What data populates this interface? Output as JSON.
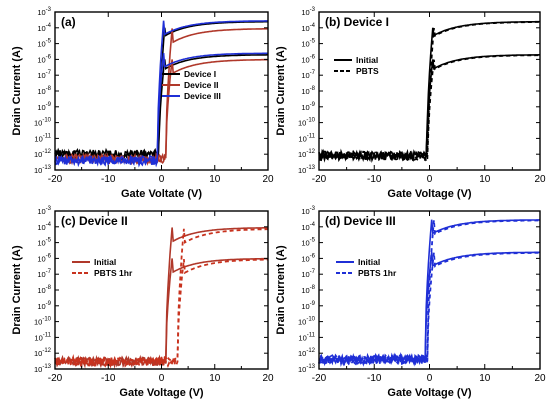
{
  "figure": {
    "y_axis_label": "Drain Current (A)",
    "x_axis_label_a": "Gate Voltate (V)",
    "x_axis_label": "Gate Voltage (V)"
  },
  "chart_data": [
    {
      "type": "line",
      "panel_label": "(a)",
      "title": "",
      "xlabel": "Gate Voltate (V)",
      "ylabel": "Drain Current (A)",
      "xlim": [
        -20,
        20
      ],
      "ylim": [
        1e-13,
        0.001
      ],
      "yscale": "log",
      "x_ticks": [
        -20,
        -10,
        0,
        10,
        20
      ],
      "legend_position": "center-right",
      "grid": false,
      "series": [
        {
          "name": "Device I",
          "color": "#000000",
          "dash": "solid",
          "Vth": -0.5,
          "Ion_high": 0.00025,
          "Ion_low": 2e-06,
          "noise": 1e-12
        },
        {
          "name": "Device II",
          "color": "#b0382a",
          "dash": "solid",
          "Vth": 0.8,
          "Ion_high": 9e-05,
          "Ion_low": 1e-06,
          "noise": 5e-13
        },
        {
          "name": "Device III",
          "color": "#1f2fd6",
          "dash": "solid",
          "Vth": -0.8,
          "Ion_high": 0.00028,
          "Ion_low": 2.5e-06,
          "noise": 4e-13
        }
      ]
    },
    {
      "type": "line",
      "panel_label": "(b) Device I",
      "title": "",
      "xlabel": "Gate Voltage (V)",
      "ylabel": "Drain Current (A)",
      "xlim": [
        -20,
        20
      ],
      "ylim": [
        1e-13,
        0.001
      ],
      "yscale": "log",
      "x_ticks": [
        -20,
        -10,
        0,
        10,
        20
      ],
      "legend_position": "center-left",
      "grid": false,
      "series": [
        {
          "name": "Initial",
          "color": "#000000",
          "dash": "solid",
          "Vth": -0.5,
          "Ion_high": 0.00025,
          "Ion_low": 2e-06,
          "noise": 8e-13
        },
        {
          "name": "PBTS",
          "color": "#000000",
          "dash": "dashed",
          "Vth": -0.3,
          "Ion_high": 0.00024,
          "Ion_low": 1.9e-06,
          "noise": 8e-13
        }
      ]
    },
    {
      "type": "line",
      "panel_label": "(c) Device II",
      "title": "",
      "xlabel": "Gate Voltage (V)",
      "ylabel": "Drain Current (A)",
      "xlim": [
        -20,
        20
      ],
      "ylim": [
        1e-13,
        0.001
      ],
      "yscale": "log",
      "x_ticks": [
        -20,
        -10,
        0,
        10,
        20
      ],
      "legend_position": "center-left",
      "grid": false,
      "series": [
        {
          "name": "Initial",
          "color": "#b0382a",
          "dash": "solid",
          "Vth": 0.8,
          "Ion_high": 9e-05,
          "Ion_low": 1e-06,
          "noise": 3e-13
        },
        {
          "name": "PBTS 1hr",
          "color": "#c8321e",
          "dash": "dashed",
          "Vth": 3.0,
          "Ion_high": 7.5e-05,
          "Ion_low": 9e-07,
          "noise": 3e-13
        }
      ]
    },
    {
      "type": "line",
      "panel_label": "(d) Device III",
      "title": "",
      "xlabel": "Gate Voltage (V)",
      "ylabel": "Drain Current (A)",
      "xlim": [
        -20,
        20
      ],
      "ylim": [
        1e-13,
        0.001
      ],
      "yscale": "log",
      "x_ticks": [
        -20,
        -10,
        0,
        10,
        20
      ],
      "legend_position": "center-left",
      "grid": false,
      "series": [
        {
          "name": "Initial",
          "color": "#1f2fd6",
          "dash": "solid",
          "Vth": -0.8,
          "Ion_high": 0.00028,
          "Ion_low": 2.5e-06,
          "noise": 4e-13
        },
        {
          "name": "PBTS 1hr",
          "color": "#1f2fd6",
          "dash": "dashed",
          "Vth": -0.4,
          "Ion_high": 0.00026,
          "Ion_low": 2.3e-06,
          "noise": 4e-13
        }
      ]
    }
  ]
}
